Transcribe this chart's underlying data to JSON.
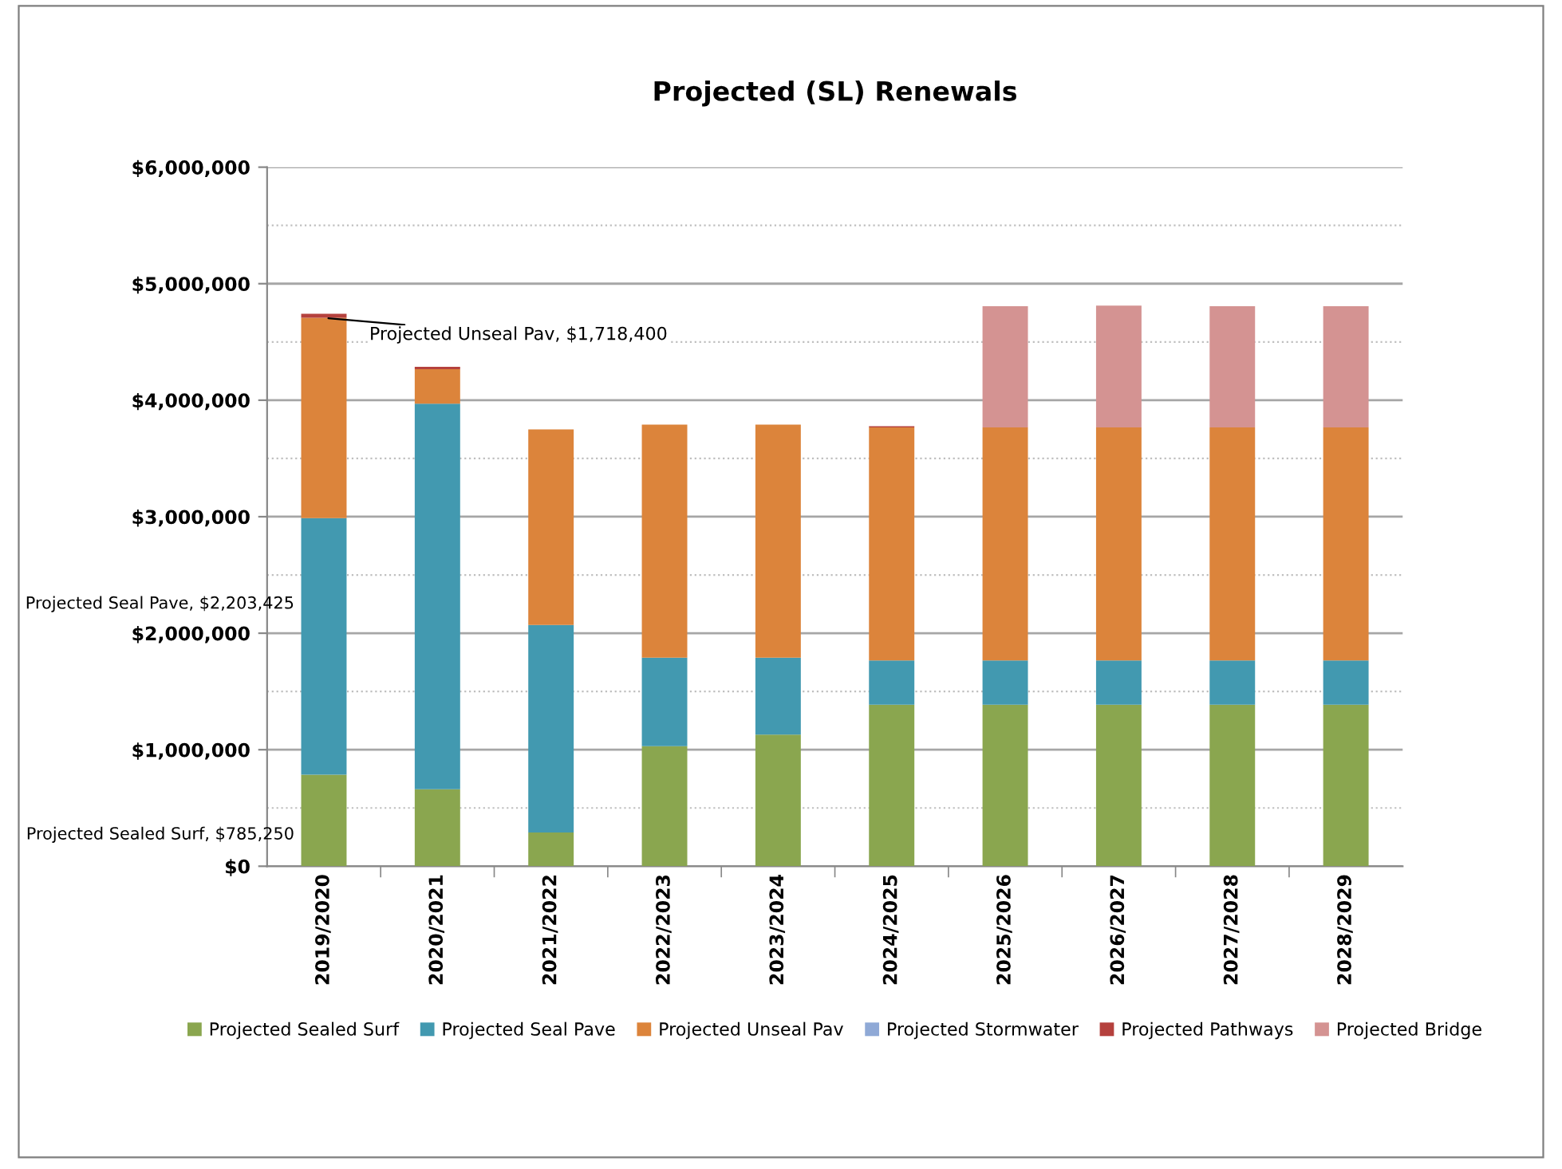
{
  "chart_data": {
    "type": "bar",
    "stacked": true,
    "title": "Projected (SL) Renewals",
    "categories": [
      "2019/2020",
      "2020/2021",
      "2021/2022",
      "2022/2023",
      "2023/2024",
      "2024/2025",
      "2025/2026",
      "2026/2027",
      "2027/2028",
      "2028/2029"
    ],
    "series": [
      {
        "name": "Projected Sealed Surf",
        "color": "#8aa64f",
        "values": [
          785250,
          660000,
          290000,
          1030000,
          1130000,
          1386000,
          1386000,
          1386000,
          1386000,
          1386000
        ]
      },
      {
        "name": "Projected Seal Pave",
        "color": "#4299b0",
        "values": [
          2203425,
          3310000,
          1780000,
          760000,
          660000,
          380000,
          380000,
          380000,
          380000,
          380000
        ]
      },
      {
        "name": "Projected Unseal Pav",
        "color": "#dc843b",
        "values": [
          1718400,
          296000,
          1680000,
          2000000,
          2000000,
          2000000,
          2000000,
          2000000,
          2000000,
          2000000
        ]
      },
      {
        "name": "Projected Stormwater",
        "color": "#8fa9d6",
        "values": [
          0,
          0,
          0,
          0,
          0,
          0,
          0,
          0,
          0,
          0
        ]
      },
      {
        "name": "Projected Pathways",
        "color": "#b5413d",
        "values": [
          35000,
          20000,
          0,
          0,
          0,
          10000,
          0,
          0,
          0,
          0
        ]
      },
      {
        "name": "Projected Bridge",
        "color": "#d49392",
        "values": [
          0,
          0,
          0,
          0,
          0,
          0,
          1040000,
          1045000,
          1040000,
          1040000
        ]
      }
    ],
    "ylim": [
      0,
      6000000
    ],
    "yticks": [
      {
        "value": 0,
        "label": "$0"
      },
      {
        "value": 500000,
        "label": null
      },
      {
        "value": 1000000,
        "label": "$1,000,000"
      },
      {
        "value": 1500000,
        "label": null
      },
      {
        "value": 2000000,
        "label": "$2,000,000"
      },
      {
        "value": 2500000,
        "label": null
      },
      {
        "value": 3000000,
        "label": "$3,000,000"
      },
      {
        "value": 3500000,
        "label": null
      },
      {
        "value": 4000000,
        "label": "$4,000,000"
      },
      {
        "value": 4500000,
        "label": null
      },
      {
        "value": 5000000,
        "label": "$5,000,000"
      },
      {
        "value": 5500000,
        "label": null
      },
      {
        "value": 6000000,
        "label": "$6,000,000"
      }
    ],
    "grid": "y",
    "legend": "bottom",
    "annotations": [
      "Projected Sealed Surf, $785,250",
      "Projected Seal Pave, $2,203,425",
      {
        "text": "Projected Unseal Pav, $1,718,400",
        "x": "2019/2020",
        "y": 4707075
      }
    ]
  }
}
